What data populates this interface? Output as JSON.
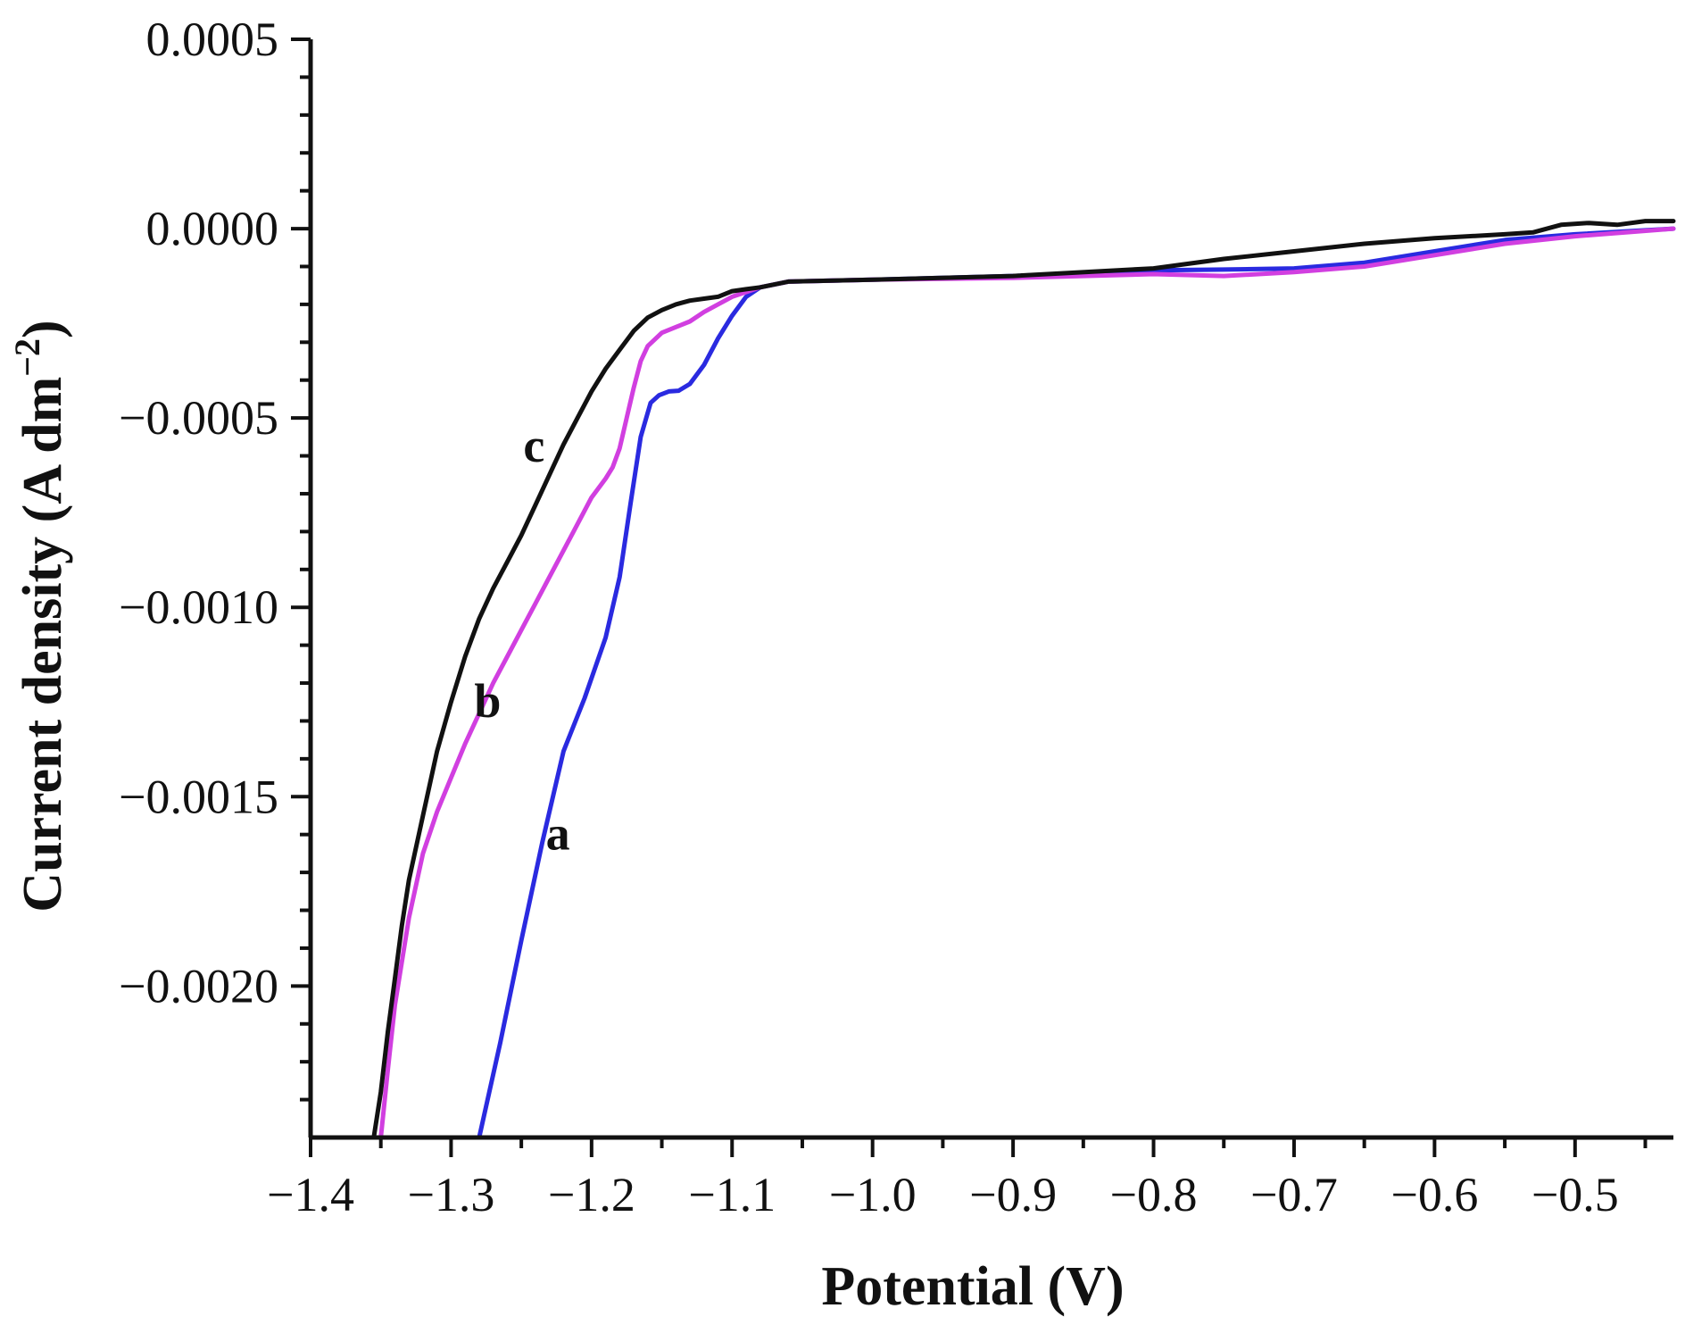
{
  "chart_data": {
    "type": "line",
    "title": "",
    "xlabel": "Potential (V)",
    "ylabel": "Current density (A dm",
    "ylabel_exponent": "−2",
    "ylabel_suffix": ")",
    "xlim": [
      -1.4,
      -0.43
    ],
    "ylim": [
      -0.0024,
      0.0005
    ],
    "x_ticks": [
      -1.4,
      -1.3,
      -1.2,
      -1.1,
      -1.0,
      -0.9,
      -0.8,
      -0.7,
      -0.6,
      -0.5
    ],
    "x_tick_labels": [
      "−1.4",
      "−1.3",
      "−1.2",
      "−1.1",
      "−1.0",
      "−0.9",
      "−0.8",
      "−0.7",
      "−0.6",
      "−0.5"
    ],
    "y_ticks": [
      0.0005,
      0.0,
      -0.0005,
      -0.001,
      -0.0015,
      -0.002
    ],
    "y_tick_labels": [
      "0.0005",
      "0.0000",
      "−0.0005",
      "−0.0010",
      "−0.0015",
      "−0.0020"
    ],
    "grid": false,
    "series": [
      {
        "name": "a",
        "color": "#2a2ae0",
        "x": [
          -1.28,
          -1.265,
          -1.25,
          -1.235,
          -1.22,
          -1.205,
          -1.19,
          -1.18,
          -1.172,
          -1.165,
          -1.158,
          -1.152,
          -1.145,
          -1.138,
          -1.13,
          -1.12,
          -1.11,
          -1.1,
          -1.09,
          -1.08,
          -1.06,
          -1.0,
          -0.9,
          -0.8,
          -0.75,
          -0.7,
          -0.65,
          -0.6,
          -0.55,
          -0.5,
          -0.43
        ],
        "y": [
          -0.0024,
          -0.00215,
          -0.00188,
          -0.00162,
          -0.00138,
          -0.00124,
          -0.00108,
          -0.00092,
          -0.00072,
          -0.00055,
          -0.00046,
          -0.00044,
          -0.00043,
          -0.000428,
          -0.00041,
          -0.00036,
          -0.00029,
          -0.00023,
          -0.00018,
          -0.000155,
          -0.00014,
          -0.000135,
          -0.000125,
          -0.00011,
          -0.000108,
          -0.000105,
          -9e-05,
          -6e-05,
          -3e-05,
          -1.5e-05,
          0.0
        ]
      },
      {
        "name": "b",
        "color": "#d13fe0",
        "x": [
          -1.35,
          -1.345,
          -1.34,
          -1.33,
          -1.32,
          -1.31,
          -1.3,
          -1.29,
          -1.28,
          -1.27,
          -1.26,
          -1.25,
          -1.24,
          -1.23,
          -1.22,
          -1.21,
          -1.2,
          -1.19,
          -1.185,
          -1.18,
          -1.175,
          -1.17,
          -1.165,
          -1.16,
          -1.15,
          -1.14,
          -1.13,
          -1.12,
          -1.11,
          -1.1,
          -1.08,
          -1.06,
          -1.0,
          -0.9,
          -0.8,
          -0.75,
          -0.7,
          -0.65,
          -0.6,
          -0.55,
          -0.5,
          -0.43
        ],
        "y": [
          -0.0024,
          -0.00222,
          -0.00205,
          -0.00182,
          -0.00165,
          -0.00154,
          -0.00145,
          -0.00136,
          -0.00128,
          -0.0012,
          -0.00113,
          -0.00106,
          -0.00099,
          -0.00092,
          -0.00085,
          -0.00078,
          -0.00071,
          -0.00066,
          -0.00063,
          -0.00058,
          -0.0005,
          -0.00042,
          -0.00035,
          -0.00031,
          -0.000275,
          -0.00026,
          -0.000245,
          -0.00022,
          -0.0002,
          -0.00018,
          -0.000155,
          -0.00014,
          -0.000135,
          -0.00013,
          -0.00012,
          -0.000125,
          -0.000115,
          -0.0001,
          -7e-05,
          -4e-05,
          -2e-05,
          0.0
        ]
      },
      {
        "name": "c",
        "color": "#111111",
        "x": [
          -1.355,
          -1.35,
          -1.345,
          -1.34,
          -1.335,
          -1.33,
          -1.32,
          -1.31,
          -1.3,
          -1.29,
          -1.28,
          -1.27,
          -1.26,
          -1.25,
          -1.24,
          -1.23,
          -1.22,
          -1.21,
          -1.2,
          -1.19,
          -1.18,
          -1.17,
          -1.16,
          -1.15,
          -1.14,
          -1.13,
          -1.12,
          -1.11,
          -1.1,
          -1.09,
          -1.08,
          -1.06,
          -1.0,
          -0.9,
          -0.8,
          -0.75,
          -0.7,
          -0.65,
          -0.6,
          -0.55,
          -0.53,
          -0.51,
          -0.49,
          -0.47,
          -0.45,
          -0.43
        ],
        "y": [
          -0.0024,
          -0.00228,
          -0.00212,
          -0.00198,
          -0.00184,
          -0.00172,
          -0.00155,
          -0.00138,
          -0.00125,
          -0.00113,
          -0.00103,
          -0.00095,
          -0.00088,
          -0.00081,
          -0.00073,
          -0.00065,
          -0.00057,
          -0.0005,
          -0.00043,
          -0.00037,
          -0.00032,
          -0.00027,
          -0.000235,
          -0.000215,
          -0.0002,
          -0.00019,
          -0.000185,
          -0.00018,
          -0.000165,
          -0.00016,
          -0.000155,
          -0.00014,
          -0.000135,
          -0.000125,
          -0.000105,
          -8e-05,
          -6e-05,
          -4e-05,
          -2.5e-05,
          -1.5e-05,
          -1e-05,
          1e-05,
          1.5e-05,
          1e-05,
          2e-05,
          2e-05
        ]
      }
    ],
    "annotations": [
      {
        "text": "a",
        "x": -1.224,
        "y": -0.00164
      },
      {
        "text": "b",
        "x": -1.274,
        "y": -0.00129
      },
      {
        "text": "c",
        "x": -1.241,
        "y": -0.000615
      }
    ]
  }
}
